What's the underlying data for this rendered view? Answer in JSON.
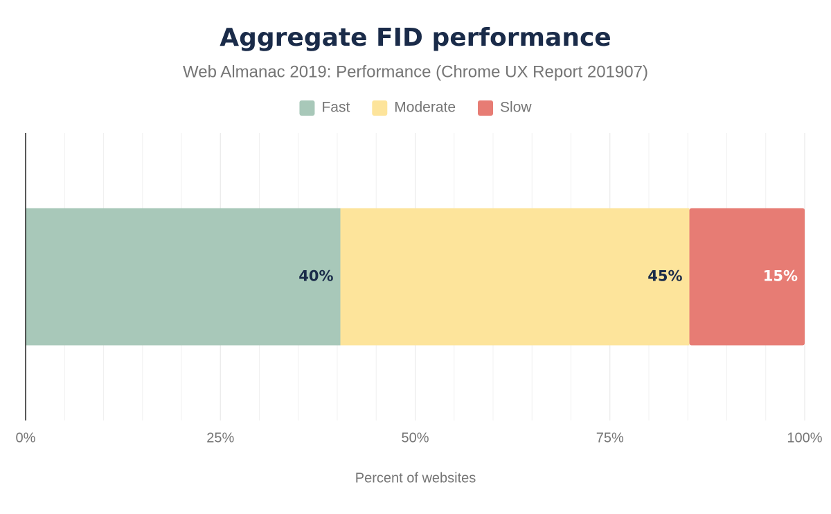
{
  "chart_data": {
    "type": "stacked-barh",
    "title": "Aggregate FID performance",
    "subtitle": "Web Almanac 2019: Performance (Chrome UX Report 201907)",
    "x_label": "Percent of websites",
    "categories": [
      null
    ],
    "series": [
      {
        "name": "Fast",
        "color": "#a8c8b9",
        "label_color": "#1a2b49",
        "values": [
          40.4
        ],
        "value_labels": [
          "40%"
        ]
      },
      {
        "name": "Moderate",
        "color": "#fde49b",
        "label_color": "#1a2b49",
        "values": [
          44.8
        ],
        "value_labels": [
          "45%"
        ]
      },
      {
        "name": "Slow",
        "color": "#e77c74",
        "label_color": "#ffffff",
        "values": [
          14.8
        ],
        "value_labels": [
          "15%"
        ]
      }
    ],
    "xlim": [
      0,
      100
    ],
    "xticks": [
      {
        "value": 0,
        "label": "0%"
      },
      {
        "value": 25,
        "label": "25%"
      },
      {
        "value": 50,
        "label": "50%"
      },
      {
        "value": 75,
        "label": "75%"
      },
      {
        "value": 100,
        "label": "100%"
      }
    ],
    "minor_xticks": [
      5,
      10,
      15,
      20,
      30,
      35,
      40,
      45,
      55,
      60,
      65,
      70,
      80,
      85,
      90,
      95
    ],
    "grid": true,
    "legend": "top"
  }
}
